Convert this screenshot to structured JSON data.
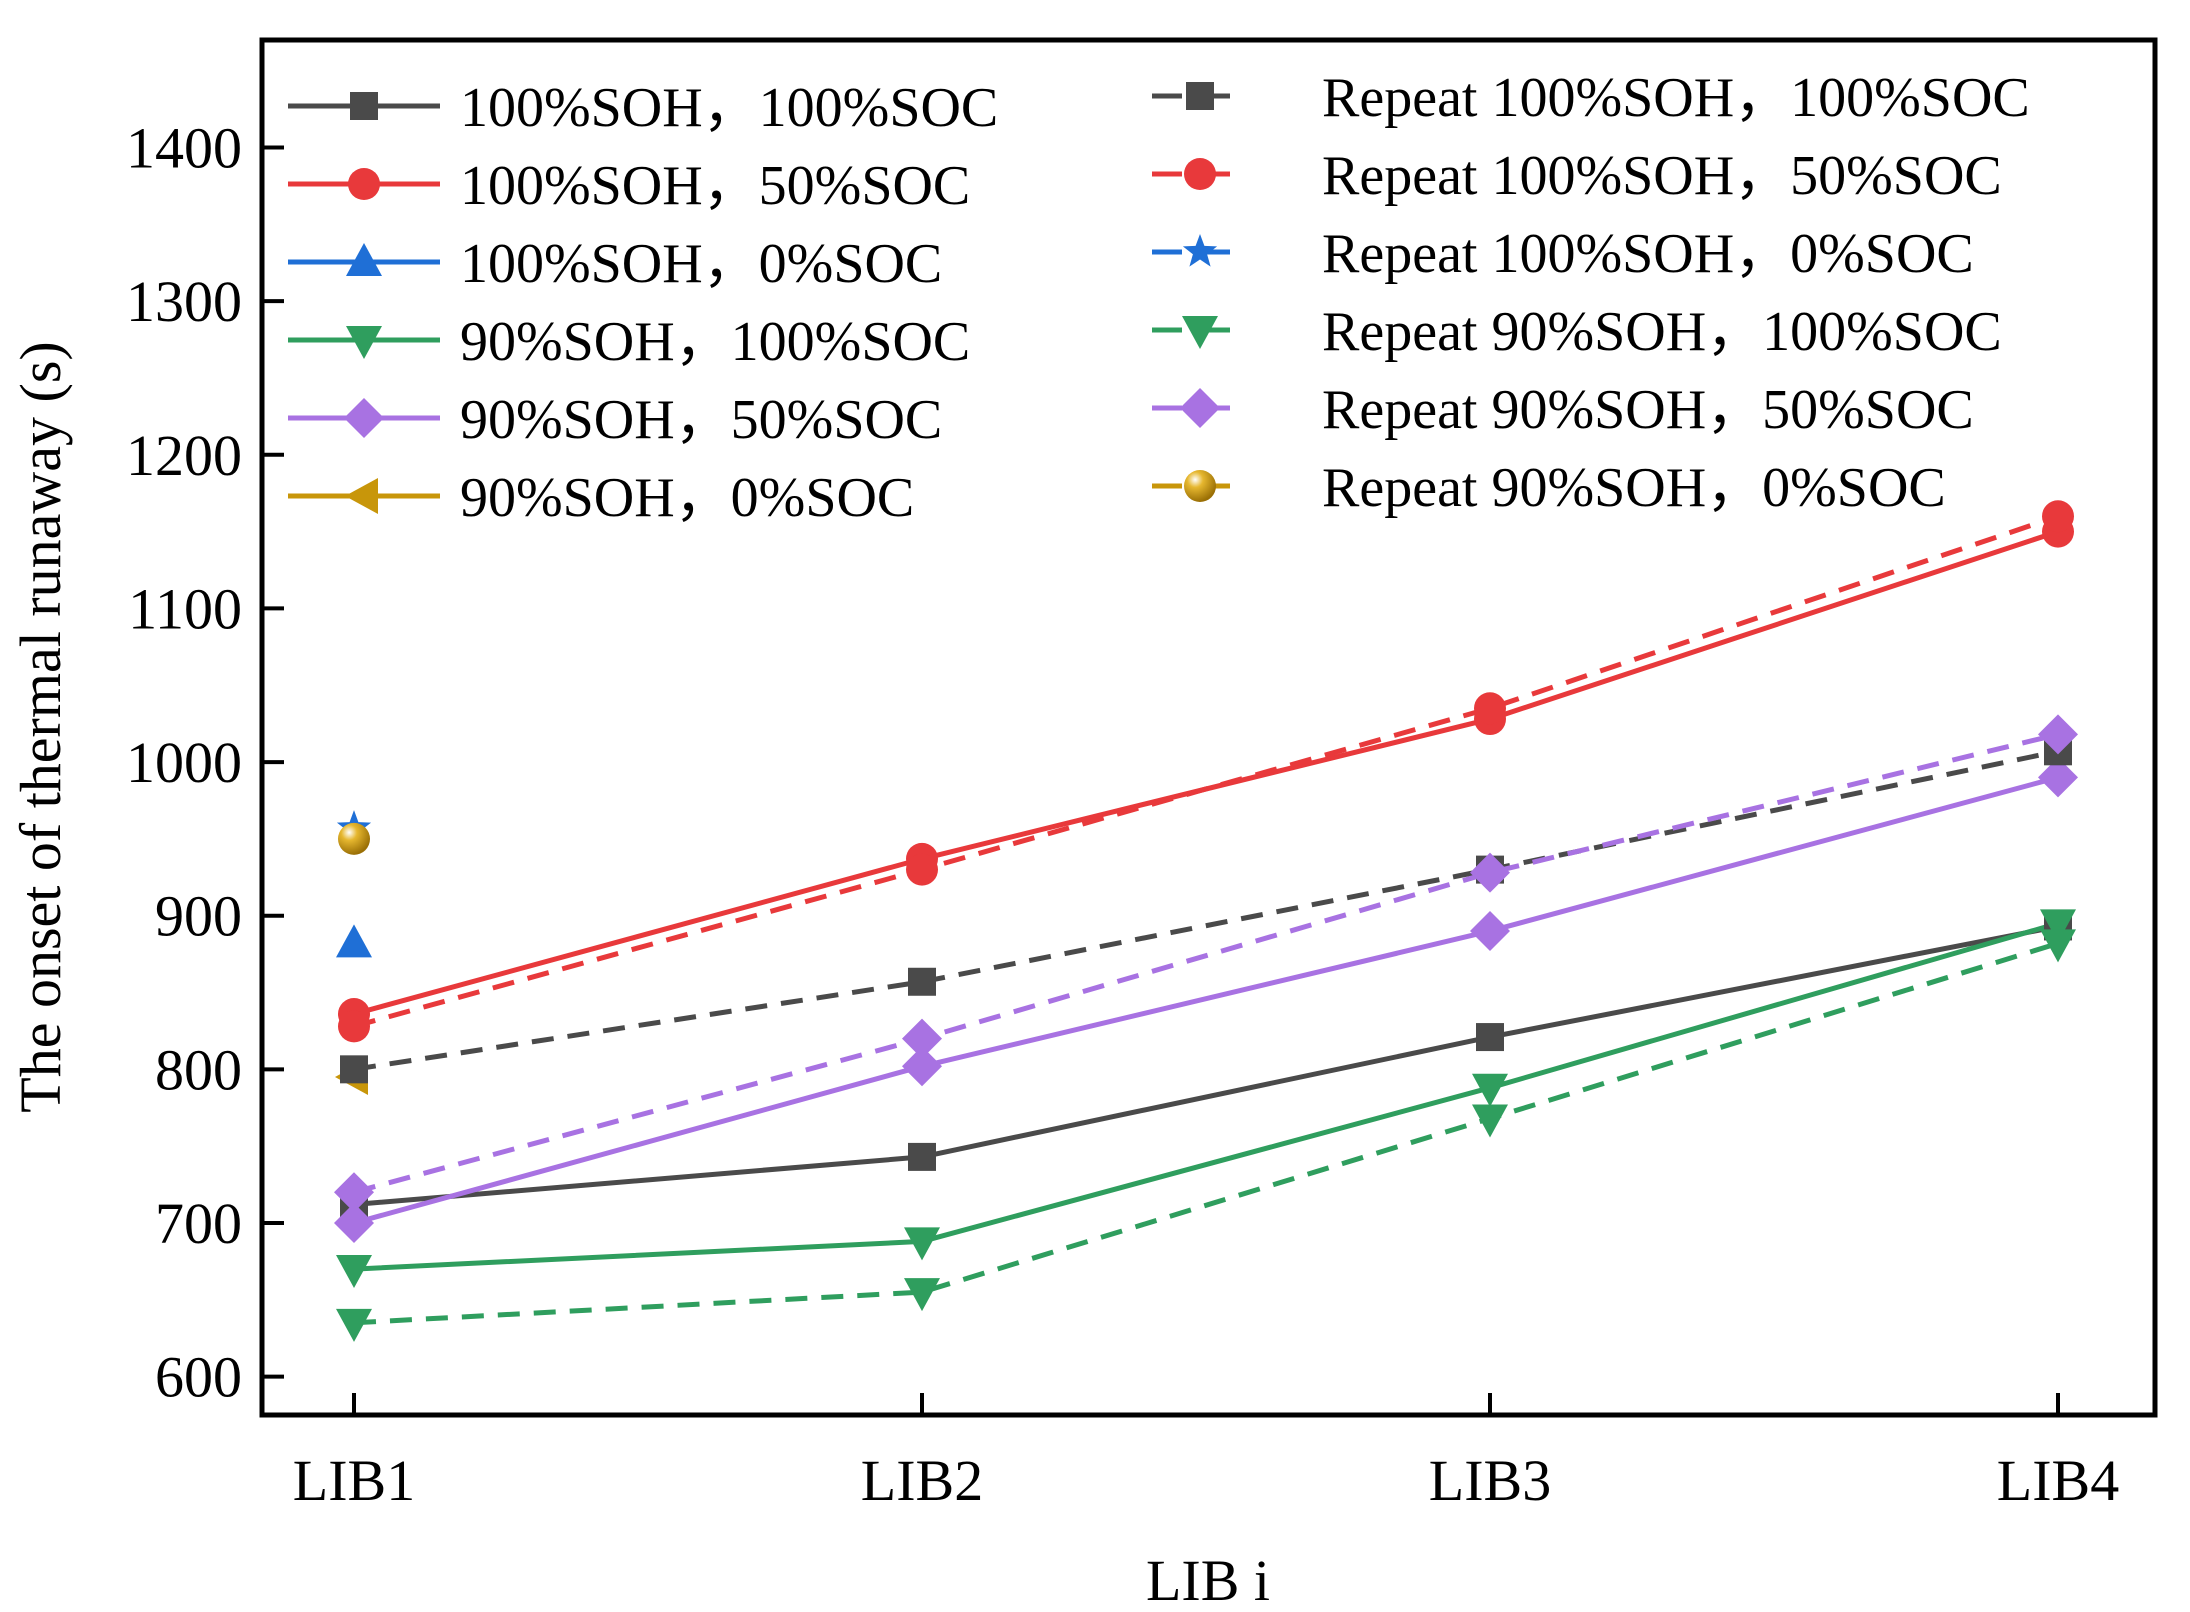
{
  "chart_data": {
    "type": "line",
    "title": "",
    "xlabel": "LIB i",
    "ylabel": "The onset of thermal runaway (s)",
    "categories": [
      "LIB1",
      "LIB2",
      "LIB3",
      "LIB4"
    ],
    "ylim": [
      575,
      1470
    ],
    "yticks": [
      600,
      700,
      800,
      900,
      1000,
      1100,
      1200,
      1300,
      1400
    ],
    "yticklabels": [
      "600",
      "700",
      "800",
      "900",
      "1000",
      "1100",
      "1200",
      "1300",
      "1400"
    ],
    "grid": false,
    "legend_position": "top",
    "series": [
      {
        "name": "100%SOH，100%SOC",
        "values": [
          712,
          743,
          821,
          893
        ],
        "color": "#4a4a4a",
        "marker": "square",
        "dash": "solid"
      },
      {
        "name": "100%SOH，50%SOC",
        "values": [
          836,
          937,
          1028,
          1150
        ],
        "color": "#e8393b",
        "marker": "circle",
        "dash": "solid"
      },
      {
        "name": "100%SOH，0%SOC",
        "values": [
          882,
          null,
          null,
          null
        ],
        "color": "#1f6fd6",
        "marker": "triangle-up",
        "dash": "solid"
      },
      {
        "name": "90%SOH，100%SOC",
        "values": [
          670,
          688,
          788,
          895
        ],
        "color": "#2f9e5e",
        "marker": "triangle-down",
        "dash": "solid"
      },
      {
        "name": "90%SOH，50%SOC",
        "values": [
          700,
          802,
          890,
          990
        ],
        "color": "#a872e2",
        "marker": "diamond",
        "dash": "solid"
      },
      {
        "name": "90%SOH，0%SOC",
        "values": [
          795,
          null,
          null,
          null
        ],
        "color": "#c8960a",
        "marker": "triangle-left",
        "dash": "solid"
      },
      {
        "name": "Repeat 100%SOH，100%SOC",
        "values": [
          800,
          857,
          930,
          1007
        ],
        "color": "#4a4a4a",
        "marker": "square",
        "dash": "dashed"
      },
      {
        "name": "Repeat 100%SOH，50%SOC",
        "values": [
          828,
          930,
          1035,
          1160
        ],
        "color": "#e8393b",
        "marker": "circle",
        "dash": "dashed"
      },
      {
        "name": "Repeat 100%SOH，0%SOC",
        "values": [
          957,
          null,
          null,
          null
        ],
        "color": "#1f6fd6",
        "marker": "star",
        "dash": "dashed"
      },
      {
        "name": "Repeat 90%SOH，100%SOC",
        "values": [
          635,
          655,
          768,
          882
        ],
        "color": "#2f9e5e",
        "marker": "triangle-down",
        "dash": "dashed"
      },
      {
        "name": "Repeat 90%SOH，50%SOC",
        "values": [
          720,
          820,
          928,
          1018
        ],
        "color": "#a872e2",
        "marker": "diamond",
        "dash": "dashed"
      },
      {
        "name": "Repeat 90%SOH，0%SOC",
        "values": [
          950,
          null,
          null,
          null
        ],
        "color": "#c8960a",
        "marker": "ball",
        "dash": "dashed"
      }
    ]
  }
}
